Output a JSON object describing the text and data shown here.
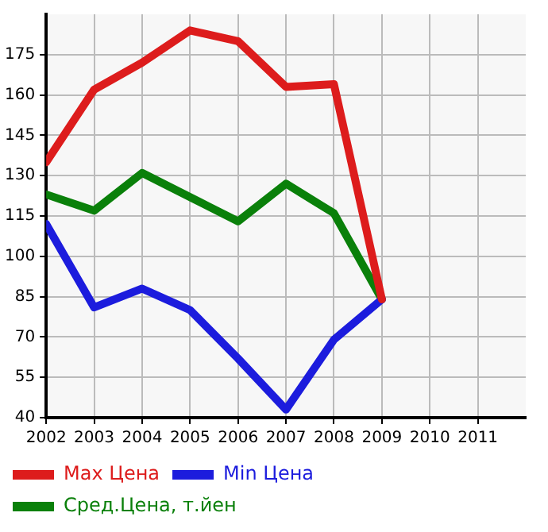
{
  "chart_data": {
    "type": "line",
    "x": [
      2002,
      2003,
      2004,
      2005,
      2006,
      2007,
      2008,
      2009
    ],
    "series": [
      {
        "name": "Max Цена",
        "color": "#dd1c1c",
        "values": [
          135,
          162,
          172,
          184,
          180,
          163,
          164,
          84
        ]
      },
      {
        "name": "Min Цена",
        "color": "#1c1cdd",
        "values": [
          112,
          81,
          88,
          80,
          62,
          43,
          69,
          84
        ]
      },
      {
        "name": "Сред.Цена, т.йен",
        "color": "#0a800a",
        "values": [
          123,
          117,
          131,
          122,
          113,
          127,
          116,
          84
        ]
      }
    ],
    "xlim": [
      2002,
      2012
    ],
    "xticks": [
      2002,
      2003,
      2004,
      2005,
      2006,
      2007,
      2008,
      2009,
      2010,
      2011
    ],
    "ylim": [
      40,
      190
    ],
    "yticks": [
      40,
      55,
      70,
      85,
      100,
      115,
      130,
      145,
      160,
      175
    ],
    "grid": true,
    "legend": "bottom",
    "marker": "none",
    "line_style": "solid"
  }
}
